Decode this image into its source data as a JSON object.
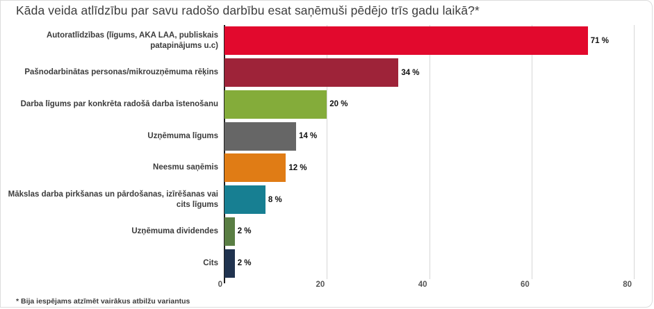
{
  "chart_data": {
    "type": "bar",
    "orientation": "horizontal",
    "title": "Kāda veida atlīdzību par savu radošo darbību esat saņēmuši pēdējo trīs gadu laikā?*",
    "footnote": "* Bija iespējams atzīmēt vairākus atbilžu variantus",
    "categories": [
      "Autoratlīdzības (līgums, AKA LAA, publiskais patapinājums u.c)",
      "Pašnodarbinātas personas/mikrouzņēmuma rēķins",
      "Darba līgums par konkrēta radošā darba īstenošanu",
      "Uzņēmuma līgums",
      "Neesmu saņēmis",
      "Mākslas darba pirkšanas un pārdošanas, izīrēšanas vai cits līgums",
      "Uzņēmuma dividendes",
      "Cits"
    ],
    "values": [
      71,
      34,
      20,
      14,
      12,
      8,
      2,
      2
    ],
    "value_labels": [
      "71 %",
      "34 %",
      "20 %",
      "14 %",
      "12 %",
      "8 %",
      "2 %",
      "2 %"
    ],
    "colors": [
      "#e2092d",
      "#9e2339",
      "#84ac3a",
      "#666666",
      "#e07c15",
      "#177f92",
      "#5a7e44",
      "#20334f"
    ],
    "x_ticks": [
      "0",
      "20",
      "40",
      "60",
      "80"
    ],
    "xlim": [
      0,
      80
    ],
    "xlabel": "",
    "ylabel": "",
    "grid": true,
    "legend": false,
    "background_color": "#ffffff",
    "gridline_color": "#d6d6d6",
    "axis_color": "#1f1f1f"
  }
}
